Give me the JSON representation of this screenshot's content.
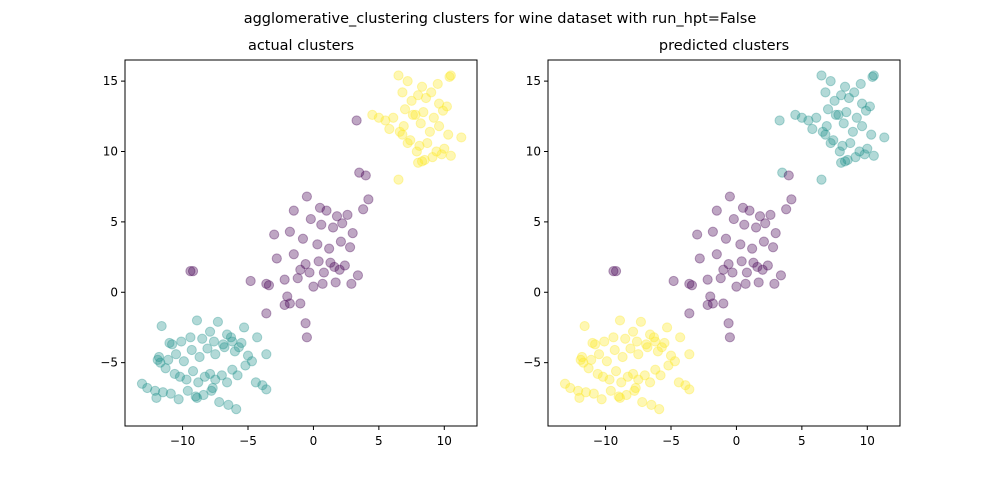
{
  "suptitle": "agglomerative_clustering clusters for wine dataset with run_hpt=False",
  "colors": {
    "cluster_0": "#440154",
    "cluster_1": "#21918c",
    "cluster_2": "#fde725",
    "marker_alpha": 0.35,
    "axes": "#000000",
    "background": "#ffffff"
  },
  "chart_data": [
    {
      "type": "scatter",
      "title": "actual clusters",
      "xlabel": "",
      "ylabel": "",
      "xlim": [
        -14.4,
        12.5
      ],
      "ylim": [
        -9.5,
        16.5
      ],
      "xticks": [
        -10,
        -5,
        0,
        5,
        10
      ],
      "yticks": [
        -5,
        0,
        5,
        10,
        15
      ],
      "grid": false,
      "legend": "none",
      "color_map": {
        "0": "cluster_0",
        "1": "cluster_1",
        "2": "cluster_2"
      }
    },
    {
      "type": "scatter",
      "title": "predicted clusters",
      "xlabel": "",
      "ylabel": "",
      "xlim": [
        -14.4,
        12.5
      ],
      "ylim": [
        -9.5,
        16.5
      ],
      "xticks": [
        -10,
        -5,
        0,
        5,
        10
      ],
      "yticks": [
        -5,
        0,
        5,
        10,
        15
      ],
      "grid": false,
      "legend": "none",
      "color_map": {
        "0": "cluster_0",
        "1": "cluster_2",
        "2": "cluster_1"
      }
    }
  ],
  "points": {
    "x": [
      6.5,
      7.2,
      8.3,
      9.5,
      10.4,
      10.5,
      6.8,
      7.5,
      8.0,
      8.6,
      9.0,
      9.6,
      10.2,
      7.0,
      7.8,
      8.4,
      9.2,
      9.9,
      5.5,
      6.1,
      6.9,
      7.6,
      8.2,
      8.9,
      9.6,
      10.3,
      11.3,
      6.8,
      7.4,
      8.1,
      8.7,
      9.4,
      10.0,
      4.5,
      5.0,
      5.8,
      6.6,
      7.2,
      7.9,
      8.5,
      9.1,
      9.8,
      10.5,
      8.0,
      8.3,
      6.5,
      3.5,
      3.3,
      -0.5,
      0.5,
      1.0,
      1.8,
      2.6,
      3.8,
      4.2,
      4.0,
      -1.5,
      -0.2,
      0.6,
      1.5,
      2.2,
      3.0,
      -3.0,
      -1.8,
      -0.8,
      0.3,
      1.2,
      2.1,
      2.8,
      -2.8,
      -1.5,
      -0.6,
      0.4,
      1.3,
      2.0,
      -1.0,
      -0.3,
      0.8,
      1.6,
      2.4,
      3.4,
      -4.8,
      -3.6,
      -2.2,
      -1.2,
      0.0,
      0.7,
      1.7,
      2.9,
      -3.4,
      -2.0,
      -1.0,
      -2.2,
      -1.8,
      -3.6,
      -0.6,
      -0.5,
      -9.4,
      -9.2,
      -13.1,
      -12.7,
      -12.1,
      -11.7,
      -11.9,
      -11.3,
      -11.0,
      -10.6,
      -10.2,
      -9.7,
      -9.2,
      -8.8,
      -8.3,
      -7.9,
      -7.5,
      -7.0,
      -6.6,
      -6.2,
      -5.8,
      -5.2,
      -4.7,
      -4.4,
      -3.9,
      -3.6,
      -12.0,
      -11.5,
      -10.9,
      -10.3,
      -9.6,
      -9.0,
      -8.4,
      -7.8,
      -7.2,
      -6.5,
      -5.9,
      -11.8,
      -11.1,
      -10.5,
      -9.9,
      -9.3,
      -8.7,
      -8.1,
      -7.5,
      -6.8,
      -6.2,
      -5.5,
      -5.0,
      -8.5,
      -7.6,
      -6.9,
      -6.3,
      -5.7,
      -4.3,
      -3.6,
      -11.6,
      -10.1,
      -8.9,
      -7.3,
      -6.0,
      -10.8,
      -9.4,
      -7.9,
      -6.6,
      -5.3,
      -8.9,
      -7.7
    ],
    "y": [
      15.4,
      15.0,
      14.6,
      14.8,
      15.3,
      15.4,
      14.2,
      13.6,
      14.0,
      13.8,
      14.2,
      13.4,
      13.2,
      13.0,
      12.6,
      12.8,
      12.4,
      12.9,
      12.2,
      12.4,
      11.8,
      12.6,
      12.0,
      11.4,
      11.8,
      11.2,
      11.0,
      11.2,
      10.8,
      10.4,
      10.6,
      10.0,
      10.2,
      12.6,
      12.4,
      11.6,
      11.4,
      10.6,
      10.0,
      9.4,
      9.6,
      9.8,
      9.7,
      9.2,
      9.3,
      8.0,
      8.5,
      12.2,
      6.8,
      6.0,
      5.8,
      5.4,
      5.5,
      5.9,
      6.6,
      8.3,
      5.8,
      5.2,
      4.8,
      4.6,
      4.9,
      4.2,
      4.1,
      4.3,
      3.8,
      3.4,
      3.1,
      3.6,
      3.2,
      2.4,
      2.7,
      2.0,
      2.2,
      2.1,
      1.6,
      1.6,
      1.4,
      1.4,
      1.8,
      1.9,
      1.2,
      0.8,
      0.6,
      0.9,
      1.0,
      0.4,
      0.6,
      0.7,
      0.6,
      0.5,
      -0.3,
      -0.8,
      -0.9,
      -0.8,
      -1.5,
      -2.2,
      -3.2,
      1.5,
      1.5,
      -6.5,
      -6.8,
      -7.0,
      -5.0,
      -4.8,
      -5.4,
      -3.6,
      -5.8,
      -6.0,
      -6.2,
      -5.6,
      -6.4,
      -6.0,
      -5.8,
      -6.2,
      -5.9,
      -6.4,
      -5.5,
      -5.9,
      -5.2,
      -4.9,
      -6.4,
      -6.6,
      -6.9,
      -7.5,
      -7.1,
      -7.2,
      -7.6,
      -7.0,
      -7.4,
      -7.3,
      -7.0,
      -7.8,
      -8.0,
      -8.3,
      -4.6,
      -4.8,
      -4.4,
      -4.9,
      -4.1,
      -4.6,
      -4.0,
      -4.4,
      -3.9,
      -3.5,
      -3.6,
      -4.5,
      -3.3,
      -3.5,
      -3.7,
      -3.2,
      -3.9,
      -3.2,
      -4.4,
      -2.4,
      -3.5,
      -2.0,
      -2.1,
      -4.2,
      -3.7,
      -3.2,
      -2.8,
      -3.0,
      -2.5,
      -7.5,
      -6.8
    ],
    "actual": [
      2,
      2,
      2,
      2,
      2,
      2,
      2,
      2,
      2,
      2,
      2,
      2,
      2,
      2,
      2,
      2,
      2,
      2,
      2,
      2,
      2,
      2,
      2,
      2,
      2,
      2,
      2,
      2,
      2,
      2,
      2,
      2,
      2,
      2,
      2,
      2,
      2,
      2,
      2,
      2,
      2,
      2,
      2,
      2,
      2,
      2,
      0,
      0,
      0,
      0,
      0,
      0,
      0,
      0,
      0,
      0,
      0,
      0,
      0,
      0,
      0,
      0,
      0,
      0,
      0,
      0,
      0,
      0,
      0,
      0,
      0,
      0,
      0,
      0,
      0,
      0,
      0,
      0,
      0,
      0,
      0,
      0,
      0,
      0,
      0,
      0,
      0,
      0,
      0,
      0,
      0,
      0,
      0,
      0,
      0,
      0,
      0,
      0,
      0,
      1,
      1,
      1,
      1,
      1,
      1,
      1,
      1,
      1,
      1,
      1,
      1,
      1,
      1,
      1,
      1,
      1,
      1,
      1,
      1,
      1,
      1,
      1,
      1,
      1,
      1,
      1,
      1,
      1,
      1,
      1,
      1,
      1,
      1,
      1,
      1,
      1,
      1,
      1,
      1,
      1,
      1,
      1,
      1,
      1,
      1,
      1,
      1,
      1,
      1,
      1,
      1,
      1,
      1,
      1,
      1,
      1,
      1,
      1,
      1,
      1,
      1,
      1,
      1,
      1,
      1,
      1
    ],
    "predicted": [
      2,
      2,
      2,
      2,
      2,
      2,
      2,
      2,
      2,
      2,
      2,
      2,
      2,
      2,
      2,
      2,
      2,
      2,
      2,
      2,
      2,
      2,
      2,
      2,
      2,
      2,
      2,
      2,
      2,
      2,
      2,
      2,
      2,
      2,
      2,
      2,
      2,
      2,
      2,
      2,
      2,
      2,
      2,
      2,
      2,
      2,
      2,
      2,
      0,
      0,
      0,
      0,
      0,
      0,
      0,
      0,
      0,
      0,
      0,
      0,
      0,
      0,
      0,
      0,
      0,
      0,
      0,
      0,
      0,
      0,
      0,
      0,
      0,
      0,
      0,
      0,
      0,
      0,
      0,
      0,
      0,
      0,
      0,
      0,
      0,
      0,
      0,
      0,
      0,
      0,
      0,
      0,
      0,
      0,
      0,
      0,
      0,
      0,
      0,
      1,
      1,
      1,
      1,
      1,
      1,
      1,
      1,
      1,
      1,
      1,
      1,
      1,
      1,
      1,
      1,
      1,
      1,
      1,
      1,
      1,
      1,
      1,
      1,
      1,
      1,
      1,
      1,
      1,
      1,
      1,
      1,
      1,
      1,
      1,
      1,
      1,
      1,
      1,
      1,
      1,
      1,
      1,
      1,
      1,
      1,
      1,
      1,
      1,
      1,
      1,
      1,
      1,
      1,
      1,
      1,
      1,
      1,
      1,
      1,
      1,
      1,
      1,
      1,
      1,
      1,
      1
    ]
  }
}
